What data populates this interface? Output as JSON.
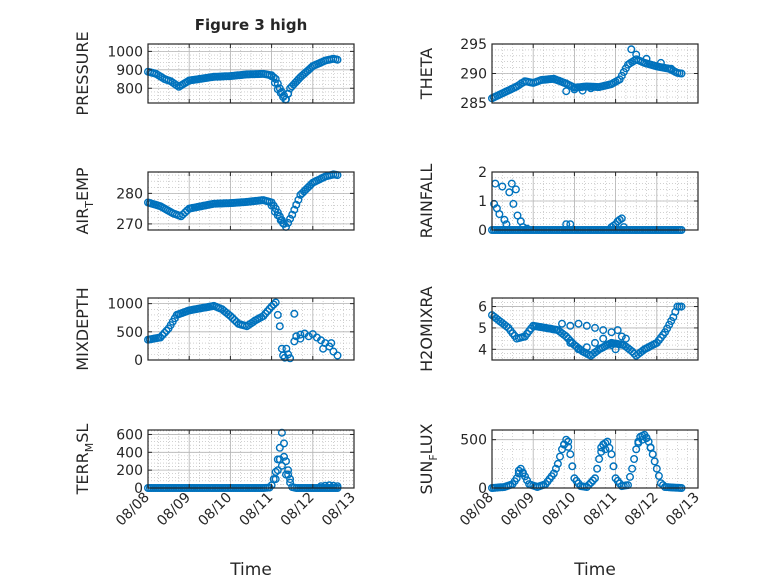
{
  "figure": {
    "title": "Figure 3 high"
  },
  "colors": {
    "marker": "#0072BD",
    "axis": "#262626",
    "grid": "#b4b4b4"
  },
  "chart_data": [
    {
      "type": "scatter",
      "ylabel": "PRESSURE",
      "ylim": [
        720,
        1040
      ],
      "yticks": [
        800,
        900,
        1000
      ],
      "xlim": [
        "08/08",
        "08/13"
      ],
      "xticks": [
        "08/08",
        "08/09",
        "08/10",
        "08/11",
        "08/12",
        "08/13"
      ],
      "grid": true,
      "knots": [
        [
          0.0,
          890
        ],
        [
          0.2,
          878
        ],
        [
          0.4,
          850
        ],
        [
          0.55,
          838
        ],
        [
          0.75,
          808
        ],
        [
          1.0,
          842
        ],
        [
          1.3,
          852
        ],
        [
          1.6,
          862
        ],
        [
          2.0,
          866
        ],
        [
          2.4,
          875
        ],
        [
          2.8,
          878
        ],
        [
          3.0,
          870
        ],
        [
          3.1,
          850
        ],
        [
          3.2,
          800
        ],
        [
          3.3,
          760
        ],
        [
          3.35,
          740
        ],
        [
          3.45,
          800
        ],
        [
          3.7,
          860
        ],
        [
          4.0,
          920
        ],
        [
          4.3,
          950
        ],
        [
          4.5,
          960
        ],
        [
          4.6,
          955
        ]
      ],
      "points": [
        [
          3.0,
          865
        ],
        [
          3.08,
          830
        ],
        [
          3.15,
          795
        ],
        [
          3.22,
          775
        ],
        [
          3.28,
          752
        ],
        [
          3.34,
          738
        ],
        [
          3.4,
          770
        ]
      ]
    },
    {
      "type": "scatter",
      "ylabel": "THETA",
      "ylim": [
        285,
        295
      ],
      "yticks": [
        285,
        290,
        295
      ],
      "xlim": [
        "08/08",
        "08/13"
      ],
      "xticks": [
        "08/08",
        "08/09",
        "08/10",
        "08/11",
        "08/12",
        "08/13"
      ],
      "grid": true,
      "knots": [
        [
          0.0,
          285.8
        ],
        [
          0.3,
          286.8
        ],
        [
          0.6,
          287.8
        ],
        [
          0.8,
          288.7
        ],
        [
          1.0,
          288.4
        ],
        [
          1.2,
          288.9
        ],
        [
          1.5,
          289.1
        ],
        [
          1.8,
          288.3
        ],
        [
          2.0,
          287.6
        ],
        [
          2.3,
          287.8
        ],
        [
          2.6,
          287.7
        ],
        [
          2.9,
          288.2
        ],
        [
          3.1,
          289.0
        ],
        [
          3.3,
          291.5
        ],
        [
          3.5,
          292.4
        ],
        [
          3.7,
          291.8
        ],
        [
          4.0,
          291.2
        ],
        [
          4.3,
          290.8
        ],
        [
          4.5,
          290.1
        ],
        [
          4.6,
          290.0
        ]
      ],
      "points": [
        [
          3.38,
          294.1
        ],
        [
          3.5,
          293.2
        ],
        [
          3.75,
          292.5
        ],
        [
          4.1,
          291.8
        ],
        [
          4.35,
          290.8
        ],
        [
          1.8,
          287.0
        ],
        [
          2.0,
          287.3
        ],
        [
          2.2,
          287.1
        ],
        [
          2.4,
          287.5
        ]
      ]
    },
    {
      "type": "scatter",
      "ylabel": "AIR_TEMP",
      "ylim": [
        268,
        287
      ],
      "yticks": [
        270,
        280
      ],
      "xlim": [
        "08/08",
        "08/13"
      ],
      "xticks": [
        "08/08",
        "08/09",
        "08/10",
        "08/11",
        "08/12",
        "08/13"
      ],
      "grid": true,
      "knots": [
        [
          0.0,
          277.0
        ],
        [
          0.3,
          275.8
        ],
        [
          0.6,
          273.5
        ],
        [
          0.8,
          272.5
        ],
        [
          1.0,
          275.0
        ],
        [
          1.3,
          275.8
        ],
        [
          1.6,
          276.6
        ],
        [
          2.0,
          276.8
        ],
        [
          2.4,
          277.2
        ],
        [
          2.8,
          277.8
        ],
        [
          3.0,
          277.0
        ],
        [
          3.1,
          275.0
        ],
        [
          3.2,
          272.5
        ],
        [
          3.3,
          270.0
        ],
        [
          3.35,
          269.0
        ],
        [
          3.5,
          273.0
        ],
        [
          3.7,
          279.5
        ],
        [
          4.0,
          283.5
        ],
        [
          4.3,
          285.5
        ],
        [
          4.5,
          286.2
        ],
        [
          4.6,
          286.0
        ]
      ],
      "points": [
        [
          3.0,
          276.0
        ],
        [
          3.08,
          274.0
        ],
        [
          3.15,
          272.8
        ],
        [
          3.22,
          271.2
        ],
        [
          3.28,
          270.2
        ]
      ]
    },
    {
      "type": "scatter",
      "ylabel": "RAINFALL",
      "ylim": [
        0,
        2
      ],
      "yticks": [
        0,
        1,
        2
      ],
      "xlim": [
        "08/08",
        "08/13"
      ],
      "xticks": [
        "08/08",
        "08/09",
        "08/10",
        "08/11",
        "08/12",
        "08/13"
      ],
      "grid": true,
      "knots": [
        [
          0.0,
          0
        ],
        [
          4.6,
          0
        ]
      ],
      "points": [
        [
          0.05,
          0.9
        ],
        [
          0.08,
          1.6
        ],
        [
          0.12,
          0.75
        ],
        [
          0.18,
          0.55
        ],
        [
          0.25,
          1.5
        ],
        [
          0.3,
          0.35
        ],
        [
          0.35,
          0.2
        ],
        [
          0.42,
          1.3
        ],
        [
          0.48,
          1.6
        ],
        [
          0.52,
          0.9
        ],
        [
          0.58,
          1.4
        ],
        [
          0.62,
          0.5
        ],
        [
          0.7,
          0.3
        ],
        [
          0.75,
          0.1
        ],
        [
          0.85,
          0.05
        ],
        [
          1.8,
          0.2
        ],
        [
          1.9,
          0.2
        ],
        [
          2.9,
          0.1
        ],
        [
          2.95,
          0.15
        ],
        [
          3.0,
          0.2
        ],
        [
          3.05,
          0.3
        ],
        [
          3.1,
          0.35
        ],
        [
          3.15,
          0.4
        ],
        [
          3.2,
          0.1
        ]
      ]
    },
    {
      "type": "scatter",
      "ylabel": "MIXDEPTH",
      "ylim": [
        0,
        1100
      ],
      "yticks": [
        0,
        500,
        1000
      ],
      "xlim": [
        "08/08",
        "08/13"
      ],
      "xticks": [
        "08/08",
        "08/09",
        "08/10",
        "08/11",
        "08/12",
        "08/13"
      ],
      "grid": true,
      "knots": [
        [
          0.0,
          360
        ],
        [
          0.3,
          400
        ],
        [
          0.5,
          560
        ],
        [
          0.7,
          800
        ],
        [
          1.0,
          880
        ],
        [
          1.3,
          920
        ],
        [
          1.6,
          960
        ],
        [
          1.8,
          900
        ],
        [
          2.0,
          780
        ],
        [
          2.2,
          640
        ],
        [
          2.4,
          600
        ],
        [
          2.6,
          700
        ],
        [
          2.8,
          780
        ],
        [
          3.0,
          950
        ],
        [
          3.1,
          1020
        ]
      ],
      "points": [
        [
          3.15,
          800
        ],
        [
          3.2,
          600
        ],
        [
          3.25,
          200
        ],
        [
          3.28,
          80
        ],
        [
          3.32,
          40
        ],
        [
          3.36,
          200
        ],
        [
          3.4,
          100
        ],
        [
          3.45,
          30
        ],
        [
          3.55,
          820
        ],
        [
          3.6,
          420
        ],
        [
          3.7,
          450
        ],
        [
          3.8,
          470
        ],
        [
          3.9,
          420
        ],
        [
          4.0,
          460
        ],
        [
          4.1,
          400
        ],
        [
          4.2,
          350
        ],
        [
          4.3,
          300
        ],
        [
          4.4,
          240
        ],
        [
          4.5,
          150
        ],
        [
          4.6,
          80
        ],
        [
          3.55,
          330
        ],
        [
          3.7,
          380
        ],
        [
          4.25,
          200
        ],
        [
          4.45,
          300
        ]
      ]
    },
    {
      "type": "scatter",
      "ylabel": "H2OMIXRA",
      "ylim": [
        3.5,
        6.4
      ],
      "yticks": [
        4,
        5,
        6
      ],
      "xlim": [
        "08/08",
        "08/13"
      ],
      "xticks": [
        "08/08",
        "08/09",
        "08/10",
        "08/11",
        "08/12",
        "08/13"
      ],
      "grid": true,
      "knots": [
        [
          0.0,
          5.6
        ],
        [
          0.2,
          5.3
        ],
        [
          0.4,
          5.0
        ],
        [
          0.6,
          4.5
        ],
        [
          0.8,
          4.6
        ],
        [
          1.0,
          5.1
        ],
        [
          1.3,
          5.0
        ],
        [
          1.6,
          4.9
        ],
        [
          1.8,
          4.6
        ],
        [
          2.0,
          4.2
        ],
        [
          2.2,
          3.9
        ],
        [
          2.4,
          3.7
        ],
        [
          2.6,
          4.0
        ],
        [
          2.9,
          4.3
        ],
        [
          3.2,
          4.2
        ],
        [
          3.4,
          3.9
        ],
        [
          3.5,
          3.7
        ],
        [
          3.7,
          4.0
        ],
        [
          4.0,
          4.3
        ],
        [
          4.2,
          4.8
        ],
        [
          4.4,
          5.5
        ],
        [
          4.5,
          6.0
        ],
        [
          4.6,
          6.0
        ]
      ],
      "points": [
        [
          1.7,
          5.2
        ],
        [
          1.9,
          5.1
        ],
        [
          2.1,
          5.2
        ],
        [
          2.3,
          5.1
        ],
        [
          2.5,
          5.0
        ],
        [
          2.7,
          4.9
        ],
        [
          2.9,
          4.8
        ],
        [
          3.05,
          4.9
        ],
        [
          3.15,
          4.6
        ],
        [
          3.25,
          4.5
        ],
        [
          1.9,
          4.3
        ],
        [
          2.1,
          4.0
        ],
        [
          2.3,
          4.1
        ],
        [
          2.5,
          4.3
        ],
        [
          2.7,
          4.5
        ],
        [
          2.9,
          4.2
        ],
        [
          3.0,
          4.0
        ]
      ]
    },
    {
      "type": "scatter",
      "ylabel": "TERR_MSL",
      "ylim": [
        0,
        650
      ],
      "yticks": [
        0,
        200,
        400,
        600
      ],
      "xlim": [
        "08/08",
        "08/13"
      ],
      "xticks": [
        "08/08",
        "08/09",
        "08/10",
        "08/11",
        "08/12",
        "08/13"
      ],
      "grid": true,
      "knots": [
        [
          0.0,
          0
        ],
        [
          2.8,
          0
        ],
        [
          2.95,
          5
        ],
        [
          3.0,
          30
        ],
        [
          3.05,
          100
        ],
        [
          3.1,
          180
        ],
        [
          3.15,
          320
        ],
        [
          3.2,
          450
        ],
        [
          3.25,
          620
        ],
        [
          3.3,
          500
        ],
        [
          3.35,
          300
        ],
        [
          3.4,
          150
        ],
        [
          3.45,
          60
        ],
        [
          3.5,
          10
        ],
        [
          3.6,
          0
        ],
        [
          4.6,
          0
        ]
      ],
      "points": [
        [
          3.1,
          100
        ],
        [
          3.15,
          200
        ],
        [
          3.2,
          320
        ],
        [
          3.25,
          250
        ],
        [
          3.3,
          350
        ],
        [
          3.35,
          150
        ],
        [
          3.4,
          200
        ],
        [
          3.45,
          100
        ],
        [
          4.2,
          20
        ],
        [
          4.3,
          25
        ],
        [
          4.4,
          30
        ],
        [
          4.5,
          25
        ],
        [
          4.6,
          20
        ]
      ]
    },
    {
      "type": "scatter",
      "ylabel": "SUN_FLUX",
      "ylim": [
        0,
        600
      ],
      "yticks": [
        0,
        500
      ],
      "xlim": [
        "08/08",
        "08/13"
      ],
      "xticks": [
        "08/08",
        "08/09",
        "08/10",
        "08/11",
        "08/12",
        "08/13"
      ],
      "grid": true,
      "knots": [
        [
          0.0,
          0
        ],
        [
          0.3,
          10
        ],
        [
          0.5,
          40
        ],
        [
          0.6,
          100
        ],
        [
          0.7,
          200
        ],
        [
          0.8,
          120
        ],
        [
          0.9,
          40
        ],
        [
          1.1,
          10
        ],
        [
          1.3,
          40
        ],
        [
          1.5,
          150
        ],
        [
          1.6,
          250
        ],
        [
          1.7,
          400
        ],
        [
          1.8,
          500
        ],
        [
          1.9,
          350
        ],
        [
          2.0,
          100
        ],
        [
          2.15,
          20
        ],
        [
          2.3,
          10
        ],
        [
          2.5,
          100
        ],
        [
          2.6,
          300
        ],
        [
          2.7,
          450
        ],
        [
          2.8,
          480
        ],
        [
          2.9,
          350
        ],
        [
          3.0,
          100
        ],
        [
          3.15,
          20
        ],
        [
          3.3,
          30
        ],
        [
          3.4,
          200
        ],
        [
          3.5,
          400
        ],
        [
          3.6,
          530
        ],
        [
          3.7,
          550
        ],
        [
          3.8,
          480
        ],
        [
          3.9,
          350
        ],
        [
          4.0,
          200
        ],
        [
          4.1,
          50
        ],
        [
          4.2,
          10
        ],
        [
          4.6,
          0
        ]
      ],
      "points": [
        [
          0.65,
          180
        ],
        [
          0.75,
          150
        ],
        [
          1.75,
          450
        ],
        [
          1.85,
          480
        ],
        [
          2.65,
          420
        ],
        [
          2.75,
          400
        ],
        [
          3.55,
          480
        ],
        [
          3.65,
          500
        ],
        [
          3.75,
          520
        ],
        [
          3.85,
          420
        ]
      ]
    }
  ],
  "axes": {
    "xlabel": "Time",
    "xlabel_right": "Time"
  }
}
